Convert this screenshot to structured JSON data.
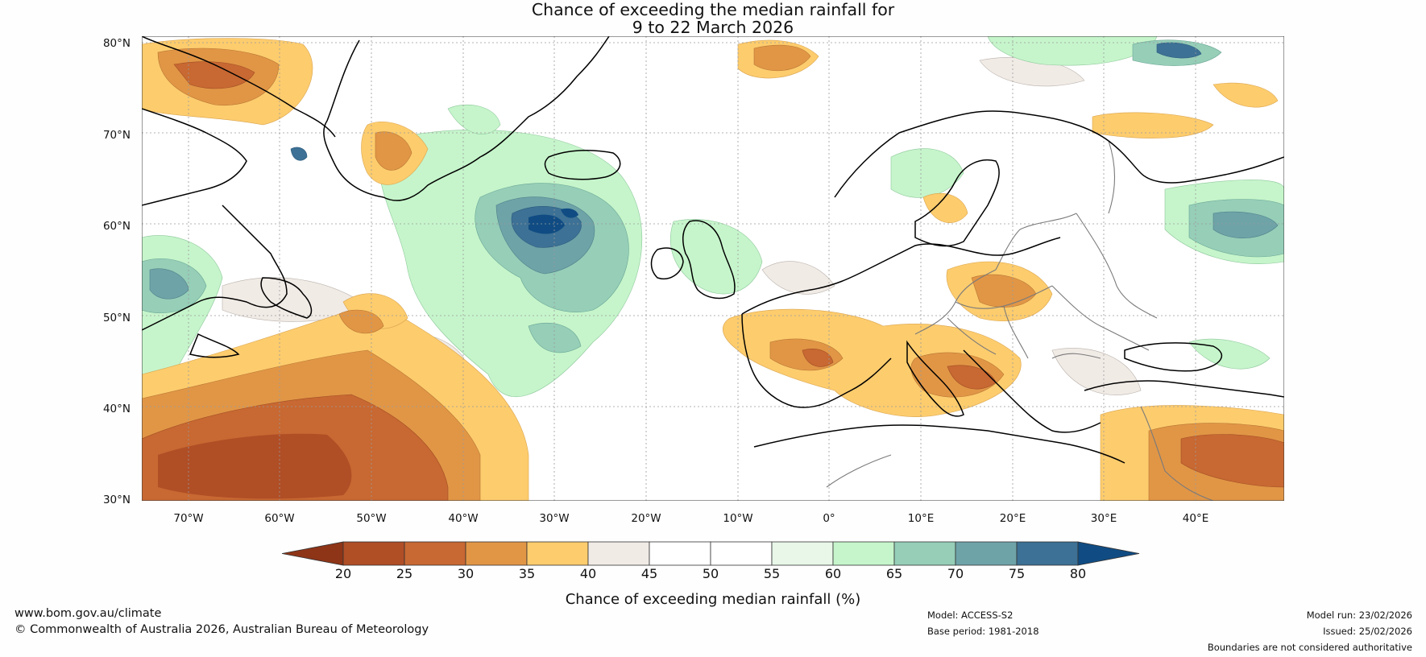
{
  "title": {
    "line1": "Chance of exceeding the median rainfall for",
    "line2": "9 to 22 March 2026"
  },
  "axes": {
    "lat_labels": [
      "80°N",
      "70°N",
      "60°N",
      "50°N",
      "40°N",
      "30°N"
    ],
    "lon_labels": [
      "70°W",
      "60°W",
      "50°W",
      "40°W",
      "30°W",
      "20°W",
      "10°W",
      "0°",
      "10°E",
      "20°E",
      "30°E",
      "40°E"
    ]
  },
  "colorbar": {
    "label": "Chance of exceeding median rainfall (%)",
    "ticks": [
      "20",
      "25",
      "30",
      "35",
      "40",
      "45",
      "50",
      "55",
      "60",
      "65",
      "70",
      "75",
      "80"
    ],
    "colors": [
      "#8e3417",
      "#b04e26",
      "#c86832",
      "#e19646",
      "#fdcc6d",
      "#f1ebe6",
      "#ffffff",
      "#ffffff",
      "#e8f7e8",
      "#c6f5cb",
      "#96ceb8",
      "#6ea3a8",
      "#3d7195",
      "#104c83"
    ]
  },
  "footer": {
    "website": "www.bom.gov.au/climate",
    "copyright": "© Commonwealth of Australia 2026, Australian Bureau of Meteorology",
    "model": "Model: ACCESS-S2",
    "base_period": "Base period: 1981-2018",
    "model_run": "Model run: 23/02/2026",
    "issued": "Issued: 25/02/2026",
    "disclaimer": "Boundaries are not considered authoritative"
  }
}
